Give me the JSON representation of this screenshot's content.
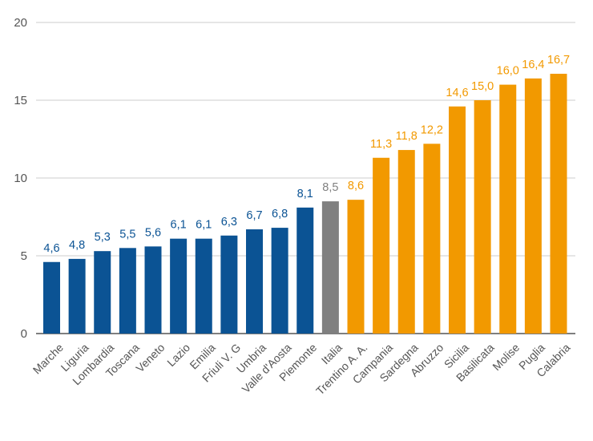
{
  "chart_data": {
    "type": "bar",
    "title": "",
    "xlabel": "",
    "ylabel": "",
    "ylim": [
      0,
      20
    ],
    "yticks": [
      "0",
      "5",
      "10",
      "15",
      "20"
    ],
    "grid": true,
    "colors": {
      "region": "#0b5394",
      "italia": "#808080",
      "above": "#f29900",
      "gridline": "#cccccc",
      "axis": "#333333"
    },
    "categories": [
      "Marche",
      "Liguria",
      "Lombardia",
      "Toscana",
      "Veneto",
      "Lazio",
      "Emilia",
      "Friuli V. G",
      "Umbria",
      "Valle d'Aosta",
      "Piemonte",
      "Italia",
      "Trentino A. A.",
      "Campania",
      "Sardegna",
      "Abruzzo",
      "Sicilia",
      "Basilicata",
      "Molise",
      "Puglia",
      "Calabria"
    ],
    "values": [
      4.6,
      4.8,
      5.3,
      5.5,
      5.6,
      6.1,
      6.1,
      6.3,
      6.7,
      6.8,
      8.1,
      8.5,
      8.6,
      11.3,
      11.8,
      12.2,
      14.6,
      15.0,
      16.0,
      16.4,
      16.7
    ],
    "value_labels": [
      "4,6",
      "4,8",
      "5,3",
      "5,5",
      "5,6",
      "6,1",
      "6,1",
      "6,3",
      "6,7",
      "6,8",
      "8,1",
      "8,5",
      "8,6",
      "11,3",
      "11,8",
      "12,2",
      "14,6",
      "15,0",
      "16,0",
      "16,4",
      "16,7"
    ],
    "bar_groups": [
      "region",
      "region",
      "region",
      "region",
      "region",
      "region",
      "region",
      "region",
      "region",
      "region",
      "region",
      "italia",
      "above",
      "above",
      "above",
      "above",
      "above",
      "above",
      "above",
      "above",
      "above"
    ]
  }
}
